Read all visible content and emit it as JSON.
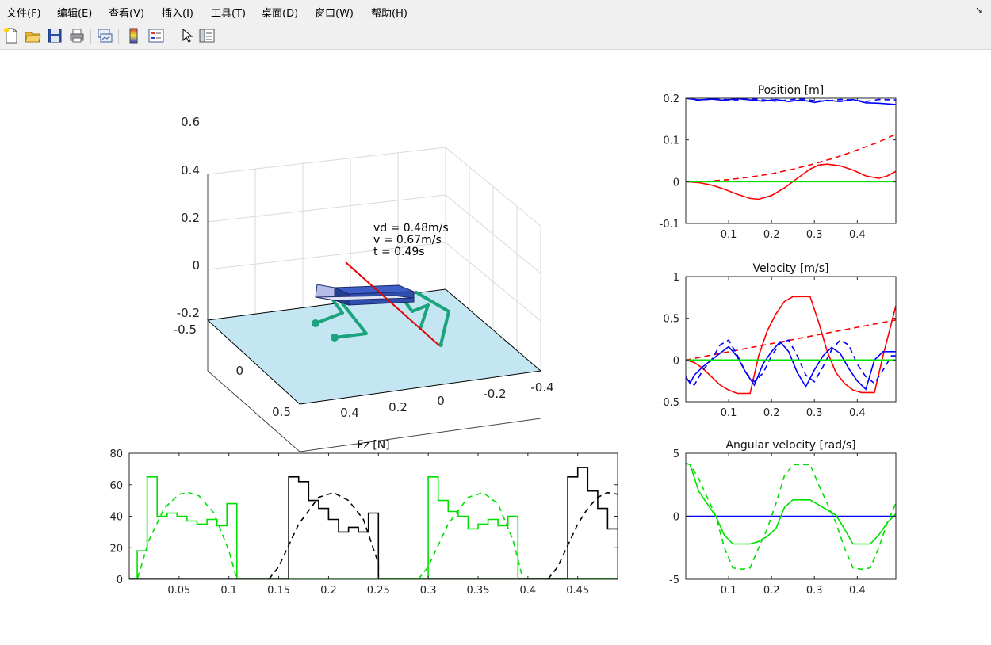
{
  "menubar": {
    "items": [
      "文件(F)",
      "编辑(E)",
      "查看(V)",
      "插入(I)",
      "工具(T)",
      "桌面(D)",
      "窗口(W)",
      "帮助(H)"
    ],
    "dock_arrow": "↘"
  },
  "toolbar": {
    "icons": [
      "new-figure-icon",
      "open-icon",
      "save-icon",
      "print-icon",
      "link-plot-icon",
      "colorbar-icon",
      "legend-icon",
      "select-arrow-icon",
      "property-inspector-icon"
    ]
  },
  "scene3d": {
    "annotation": {
      "vd": "vd = 0.48m/s",
      "v": "v = 0.67m/s",
      "t": "t = 0.49s"
    },
    "z_ticks": [
      "0.6",
      "0.4",
      "0.2",
      "0",
      "-0.2"
    ],
    "y_ticks": [
      "-0.5",
      "0",
      "0.5"
    ],
    "x_ticks": [
      "0.4",
      "0.2",
      "0",
      "-0.2",
      "-0.4"
    ],
    "colors": {
      "ground": "#c3e6f2",
      "body": "#2f4faf",
      "legs": "#1aa37c",
      "velocity": "#e60000"
    }
  },
  "chart_data": [
    {
      "type": "line",
      "title": "Position [m]",
      "xlim": [
        0,
        0.49
      ],
      "ylim": [
        -0.1,
        0.2
      ],
      "x_ticks": [
        "0.1",
        "0.2",
        "0.3",
        "0.4"
      ],
      "y_ticks": [
        "-0.1",
        "0",
        "0.1",
        "0.2"
      ],
      "series": [
        {
          "color": "#0000ff",
          "style": "solid",
          "x": [
            0,
            0.03,
            0.06,
            0.09,
            0.12,
            0.15,
            0.18,
            0.21,
            0.24,
            0.27,
            0.3,
            0.33,
            0.36,
            0.39,
            0.42,
            0.45,
            0.49
          ],
          "y": [
            0.2,
            0.196,
            0.198,
            0.195,
            0.199,
            0.196,
            0.193,
            0.197,
            0.192,
            0.196,
            0.19,
            0.195,
            0.192,
            0.197,
            0.189,
            0.188,
            0.185
          ]
        },
        {
          "color": "#0000ff",
          "style": "dashed",
          "x": [
            0,
            0.03,
            0.06,
            0.09,
            0.12,
            0.15,
            0.18,
            0.21,
            0.24,
            0.27,
            0.3,
            0.33,
            0.36,
            0.39,
            0.42,
            0.45,
            0.49
          ],
          "y": [
            0.2,
            0.195,
            0.198,
            0.197,
            0.196,
            0.199,
            0.196,
            0.193,
            0.196,
            0.199,
            0.194,
            0.193,
            0.197,
            0.196,
            0.192,
            0.197,
            0.196
          ]
        },
        {
          "color": "#ff0000",
          "style": "solid",
          "x": [
            0,
            0.03,
            0.06,
            0.09,
            0.12,
            0.15,
            0.17,
            0.2,
            0.23,
            0.26,
            0.29,
            0.31,
            0.33,
            0.36,
            0.39,
            0.42,
            0.45,
            0.47,
            0.49
          ],
          "y": [
            0,
            -0.002,
            -0.008,
            -0.018,
            -0.03,
            -0.04,
            -0.042,
            -0.033,
            -0.015,
            0.008,
            0.03,
            0.04,
            0.042,
            0.038,
            0.028,
            0.014,
            0.008,
            0.014,
            0.025
          ]
        },
        {
          "color": "#ff0000",
          "style": "dashed",
          "x": [
            0,
            0.05,
            0.1,
            0.15,
            0.2,
            0.25,
            0.3,
            0.35,
            0.4,
            0.45,
            0.49
          ],
          "y": [
            0,
            0.001,
            0.005,
            0.011,
            0.019,
            0.03,
            0.043,
            0.058,
            0.076,
            0.095,
            0.114
          ]
        },
        {
          "color": "#00e000",
          "style": "solid",
          "x": [
            0,
            0.49
          ],
          "y": [
            0,
            0
          ]
        }
      ]
    },
    {
      "type": "line",
      "title": "Velocity [m/s]",
      "xlim": [
        0,
        0.49
      ],
      "ylim": [
        -0.5,
        1
      ],
      "x_ticks": [
        "0.1",
        "0.2",
        "0.3",
        "0.4"
      ],
      "y_ticks": [
        "-0.5",
        "0",
        "0.5",
        "1"
      ],
      "series": [
        {
          "color": "#ff0000",
          "style": "solid",
          "x": [
            0,
            0.02,
            0.04,
            0.06,
            0.08,
            0.1,
            0.12,
            0.15,
            0.17,
            0.19,
            0.21,
            0.23,
            0.25,
            0.27,
            0.29,
            0.31,
            0.33,
            0.35,
            0.37,
            0.39,
            0.41,
            0.44,
            0.46,
            0.48,
            0.49
          ],
          "y": [
            0,
            -0.03,
            -0.1,
            -0.2,
            -0.3,
            -0.36,
            -0.4,
            -0.4,
            0.05,
            0.35,
            0.55,
            0.7,
            0.76,
            0.76,
            0.76,
            0.45,
            0.1,
            -0.15,
            -0.28,
            -0.36,
            -0.39,
            -0.39,
            0.05,
            0.45,
            0.65
          ]
        },
        {
          "color": "#ff0000",
          "style": "dashed",
          "x": [
            0,
            0.49
          ],
          "y": [
            0,
            0.48
          ]
        },
        {
          "color": "#0000ff",
          "style": "solid",
          "x": [
            0,
            0.01,
            0.02,
            0.04,
            0.06,
            0.08,
            0.1,
            0.12,
            0.14,
            0.16,
            0.18,
            0.2,
            0.22,
            0.24,
            0.26,
            0.28,
            0.3,
            0.32,
            0.34,
            0.36,
            0.38,
            0.4,
            0.42,
            0.44,
            0.46,
            0.48,
            0.49
          ],
          "y": [
            -0.2,
            -0.28,
            -0.18,
            -0.08,
            0,
            0.08,
            0.16,
            0.04,
            -0.15,
            -0.3,
            -0.05,
            0.1,
            0.22,
            0.1,
            -0.15,
            -0.32,
            -0.12,
            0.05,
            0.15,
            0.08,
            -0.1,
            -0.25,
            -0.35,
            0,
            0.1,
            0.1,
            0.1
          ]
        },
        {
          "color": "#0000ff",
          "style": "dashed",
          "x": [
            0,
            0.02,
            0.04,
            0.06,
            0.08,
            0.1,
            0.12,
            0.14,
            0.16,
            0.18,
            0.2,
            0.22,
            0.24,
            0.26,
            0.28,
            0.3,
            0.32,
            0.34,
            0.36,
            0.38,
            0.4,
            0.42,
            0.44,
            0.46,
            0.48,
            0.49
          ],
          "y": [
            -0.22,
            -0.3,
            -0.12,
            0,
            0.18,
            0.24,
            0.06,
            -0.15,
            -0.26,
            -0.16,
            0.05,
            0.2,
            0.24,
            0.05,
            -0.18,
            -0.26,
            -0.08,
            0.12,
            0.24,
            0.18,
            -0.05,
            -0.2,
            -0.28,
            -0.12,
            0.05,
            0.05
          ]
        },
        {
          "color": "#00e000",
          "style": "solid",
          "x": [
            0,
            0.49
          ],
          "y": [
            0,
            0
          ]
        }
      ]
    },
    {
      "type": "line",
      "title": "Fz [N]",
      "xlim": [
        0,
        0.49
      ],
      "ylim": [
        0,
        80
      ],
      "x_ticks": [
        "0.05",
        "0.1",
        "0.15",
        "0.2",
        "0.25",
        "0.3",
        "0.35",
        "0.4",
        "0.45"
      ],
      "y_ticks": [
        "0",
        "20",
        "40",
        "60",
        "80"
      ],
      "series": [
        {
          "color": "#00e000",
          "style": "solid",
          "x": [
            0,
            0.008,
            0.008,
            0.018,
            0.018,
            0.028,
            0.028,
            0.038,
            0.038,
            0.048,
            0.048,
            0.058,
            0.058,
            0.068,
            0.068,
            0.078,
            0.078,
            0.088,
            0.088,
            0.098,
            0.098,
            0.108,
            0.108,
            0.51
          ],
          "y": [
            0,
            0,
            18,
            18,
            65,
            65,
            40,
            40,
            42,
            42,
            40,
            40,
            37,
            37,
            35,
            35,
            38,
            38,
            34,
            34,
            48,
            48,
            0,
            0
          ]
        },
        {
          "color": "#00e000",
          "style": "dashed",
          "x": [
            0,
            0.008,
            0.02,
            0.035,
            0.05,
            0.06,
            0.07,
            0.085,
            0.1,
            0.108
          ],
          "y": [
            0,
            0,
            25,
            45,
            54,
            55,
            53,
            42,
            18,
            0
          ]
        },
        {
          "color": "#000000",
          "style": "solid",
          "x": [
            0,
            0.16,
            0.16,
            0.17,
            0.17,
            0.18,
            0.18,
            0.19,
            0.19,
            0.2,
            0.2,
            0.21,
            0.21,
            0.22,
            0.22,
            0.23,
            0.23,
            0.24,
            0.24,
            0.25,
            0.25,
            0.51
          ],
          "y": [
            0,
            0,
            65,
            65,
            62,
            62,
            50,
            50,
            45,
            45,
            38,
            38,
            30,
            30,
            33,
            33,
            30,
            30,
            42,
            42,
            0,
            0
          ]
        },
        {
          "color": "#000000",
          "style": "dashed",
          "x": [
            0.14,
            0.15,
            0.17,
            0.19,
            0.205,
            0.22,
            0.235,
            0.25,
            0.25
          ],
          "y": [
            0,
            8,
            35,
            52,
            55,
            50,
            38,
            10,
            0
          ]
        },
        {
          "color": "#00e000",
          "style": "solid",
          "x": [
            0.25,
            0.3,
            0.3,
            0.31,
            0.31,
            0.32,
            0.32,
            0.33,
            0.33,
            0.34,
            0.34,
            0.35,
            0.35,
            0.36,
            0.36,
            0.37,
            0.37,
            0.38,
            0.38,
            0.39,
            0.39,
            0.51
          ],
          "y": [
            0,
            0,
            65,
            65,
            50,
            50,
            43,
            43,
            40,
            40,
            32,
            32,
            35,
            35,
            38,
            38,
            34,
            34,
            40,
            40,
            0,
            0
          ]
        },
        {
          "color": "#00e000",
          "style": "dashed",
          "x": [
            0.29,
            0.3,
            0.32,
            0.34,
            0.355,
            0.37,
            0.385,
            0.395
          ],
          "y": [
            0,
            8,
            35,
            52,
            55,
            48,
            25,
            0
          ]
        },
        {
          "color": "#000000",
          "style": "solid",
          "x": [
            0.39,
            0.44,
            0.44,
            0.45,
            0.45,
            0.46,
            0.46,
            0.47,
            0.47,
            0.48,
            0.48,
            0.49
          ],
          "y": [
            0,
            0,
            65,
            65,
            71,
            71,
            56,
            56,
            45,
            45,
            32,
            32
          ]
        },
        {
          "color": "#000000",
          "style": "dashed",
          "x": [
            0.42,
            0.43,
            0.45,
            0.46,
            0.47,
            0.48,
            0.49
          ],
          "y": [
            0,
            8,
            35,
            45,
            52,
            55,
            54
          ]
        }
      ]
    },
    {
      "type": "line",
      "title": "Angular velocity [rad/s]",
      "xlim": [
        0,
        0.49
      ],
      "ylim": [
        -5,
        5
      ],
      "x_ticks": [
        "0.1",
        "0.2",
        "0.3",
        "0.4"
      ],
      "y_ticks": [
        "-5",
        "0",
        "5"
      ],
      "series": [
        {
          "color": "#0000ff",
          "style": "solid",
          "x": [
            0,
            0.49
          ],
          "y": [
            0,
            0
          ]
        },
        {
          "color": "#00e000",
          "style": "solid",
          "x": [
            0,
            0.01,
            0.03,
            0.05,
            0.07,
            0.09,
            0.11,
            0.13,
            0.15,
            0.17,
            0.19,
            0.21,
            0.23,
            0.25,
            0.27,
            0.29,
            0.31,
            0.33,
            0.35,
            0.37,
            0.39,
            0.41,
            0.43,
            0.45,
            0.47,
            0.49
          ],
          "y": [
            4.2,
            4.1,
            2,
            1,
            0,
            -1.5,
            -2.2,
            -2.2,
            -2.2,
            -2,
            -1.6,
            -1,
            0.7,
            1.3,
            1.3,
            1.3,
            0.9,
            0.5,
            0.1,
            -1,
            -2.2,
            -2.2,
            -2.2,
            -1.5,
            -0.5,
            0.2
          ]
        },
        {
          "color": "#00e000",
          "style": "dashed",
          "x": [
            0,
            0.01,
            0.03,
            0.05,
            0.07,
            0.09,
            0.11,
            0.13,
            0.15,
            0.17,
            0.19,
            0.21,
            0.23,
            0.25,
            0.27,
            0.29,
            0.31,
            0.33,
            0.35,
            0.37,
            0.39,
            0.41,
            0.43,
            0.45,
            0.47,
            0.49
          ],
          "y": [
            4.2,
            4.1,
            3,
            1.5,
            0,
            -2.5,
            -4.1,
            -4.2,
            -4.1,
            -2.5,
            -1,
            1,
            3.2,
            4.1,
            4.1,
            4.1,
            2.5,
            1,
            -0.5,
            -2.5,
            -4.1,
            -4.2,
            -4.1,
            -2.5,
            -0.5,
            1
          ]
        }
      ]
    }
  ]
}
